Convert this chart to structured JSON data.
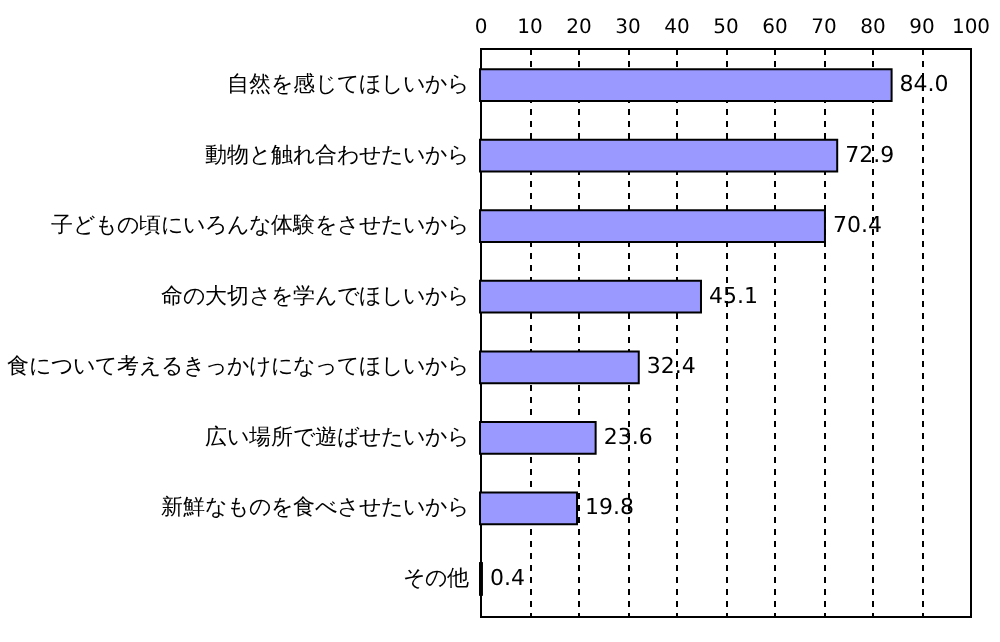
{
  "chart_data": {
    "type": "bar",
    "orientation": "horizontal",
    "categories": [
      "自然を感じてほしいから",
      "動物と触れ合わせたいから",
      "子どもの頃にいろんな体験をさせたいから",
      "命の大切さを学んでほしいから",
      "食について考えるきっかけになってほしいから",
      "広い場所で遊ばせたいから",
      "新鮮なものを食べさせたいから",
      "その他"
    ],
    "values": [
      84.0,
      72.9,
      70.4,
      45.1,
      32.4,
      23.6,
      19.8,
      0.4
    ],
    "color": "#9999ff",
    "xlim": [
      0,
      100
    ],
    "xticks": [
      0,
      10,
      20,
      30,
      40,
      50,
      60,
      70,
      80,
      90,
      100
    ],
    "value_labels": [
      "84.0",
      "72.9",
      "70.4",
      "45.1",
      "32.4",
      "23.6",
      "19.8",
      "0.4"
    ],
    "grid": "x"
  }
}
